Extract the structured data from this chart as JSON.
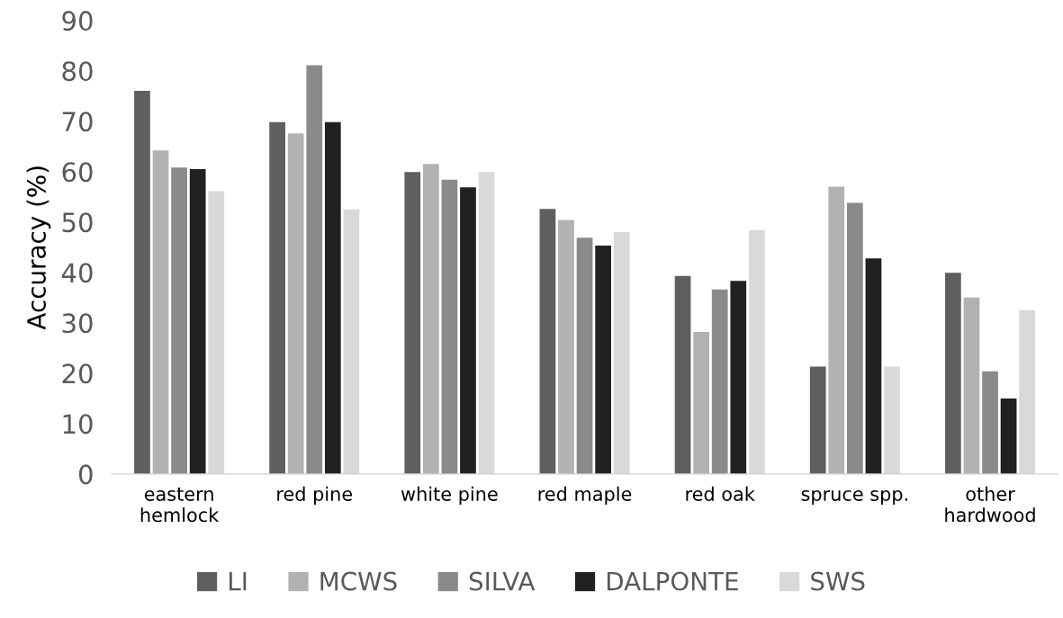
{
  "chart_data": {
    "type": "bar",
    "ylabel": "Accuracy (%)",
    "categories": [
      "eastern\nhemlock",
      "red pine",
      "white pine",
      "red maple",
      "red oak",
      "spruce spp.",
      "other\nhardwood"
    ],
    "series": [
      {
        "name": "LI",
        "color": "#5f5f5f",
        "values": [
          76.0,
          69.8,
          59.9,
          52.6,
          39.3,
          21.3,
          39.9
        ]
      },
      {
        "name": "MCWS",
        "color": "#b2b2b2",
        "values": [
          64.2,
          67.6,
          61.5,
          50.4,
          28.2,
          57.0,
          35.0
        ]
      },
      {
        "name": "SILVA",
        "color": "#8a8a8a",
        "values": [
          60.8,
          81.1,
          58.4,
          46.9,
          36.6,
          53.8,
          20.4
        ]
      },
      {
        "name": "DALPONTE",
        "color": "#212121",
        "values": [
          60.5,
          69.8,
          56.9,
          45.3,
          38.3,
          42.8,
          15.0
        ]
      },
      {
        "name": "SWS",
        "color": "#d9d9d9",
        "values": [
          56.1,
          52.5,
          59.9,
          48.0,
          48.4,
          21.3,
          32.5
        ]
      }
    ],
    "ylim": [
      0,
      90
    ],
    "yticks": [
      0,
      10,
      20,
      30,
      40,
      50,
      60,
      70,
      80,
      90
    ],
    "grid": false,
    "legend": "bottom"
  }
}
